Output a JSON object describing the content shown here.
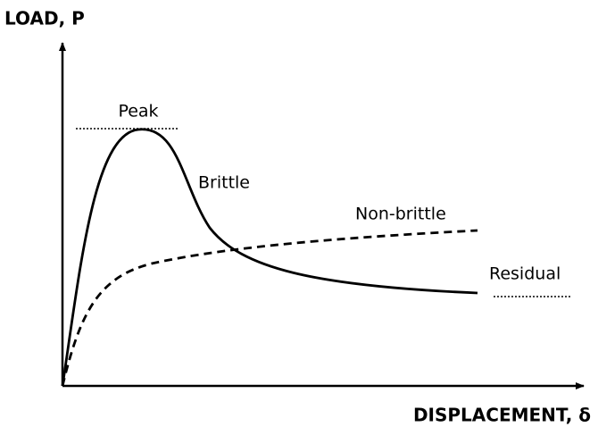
{
  "axes": {
    "y_label": "LOAD, P",
    "x_label": "DISPLACEMENT, δ"
  },
  "labels": {
    "peak": "Peak",
    "brittle": "Brittle",
    "non_brittle": "Non-brittle",
    "residual": "Residual"
  }
}
